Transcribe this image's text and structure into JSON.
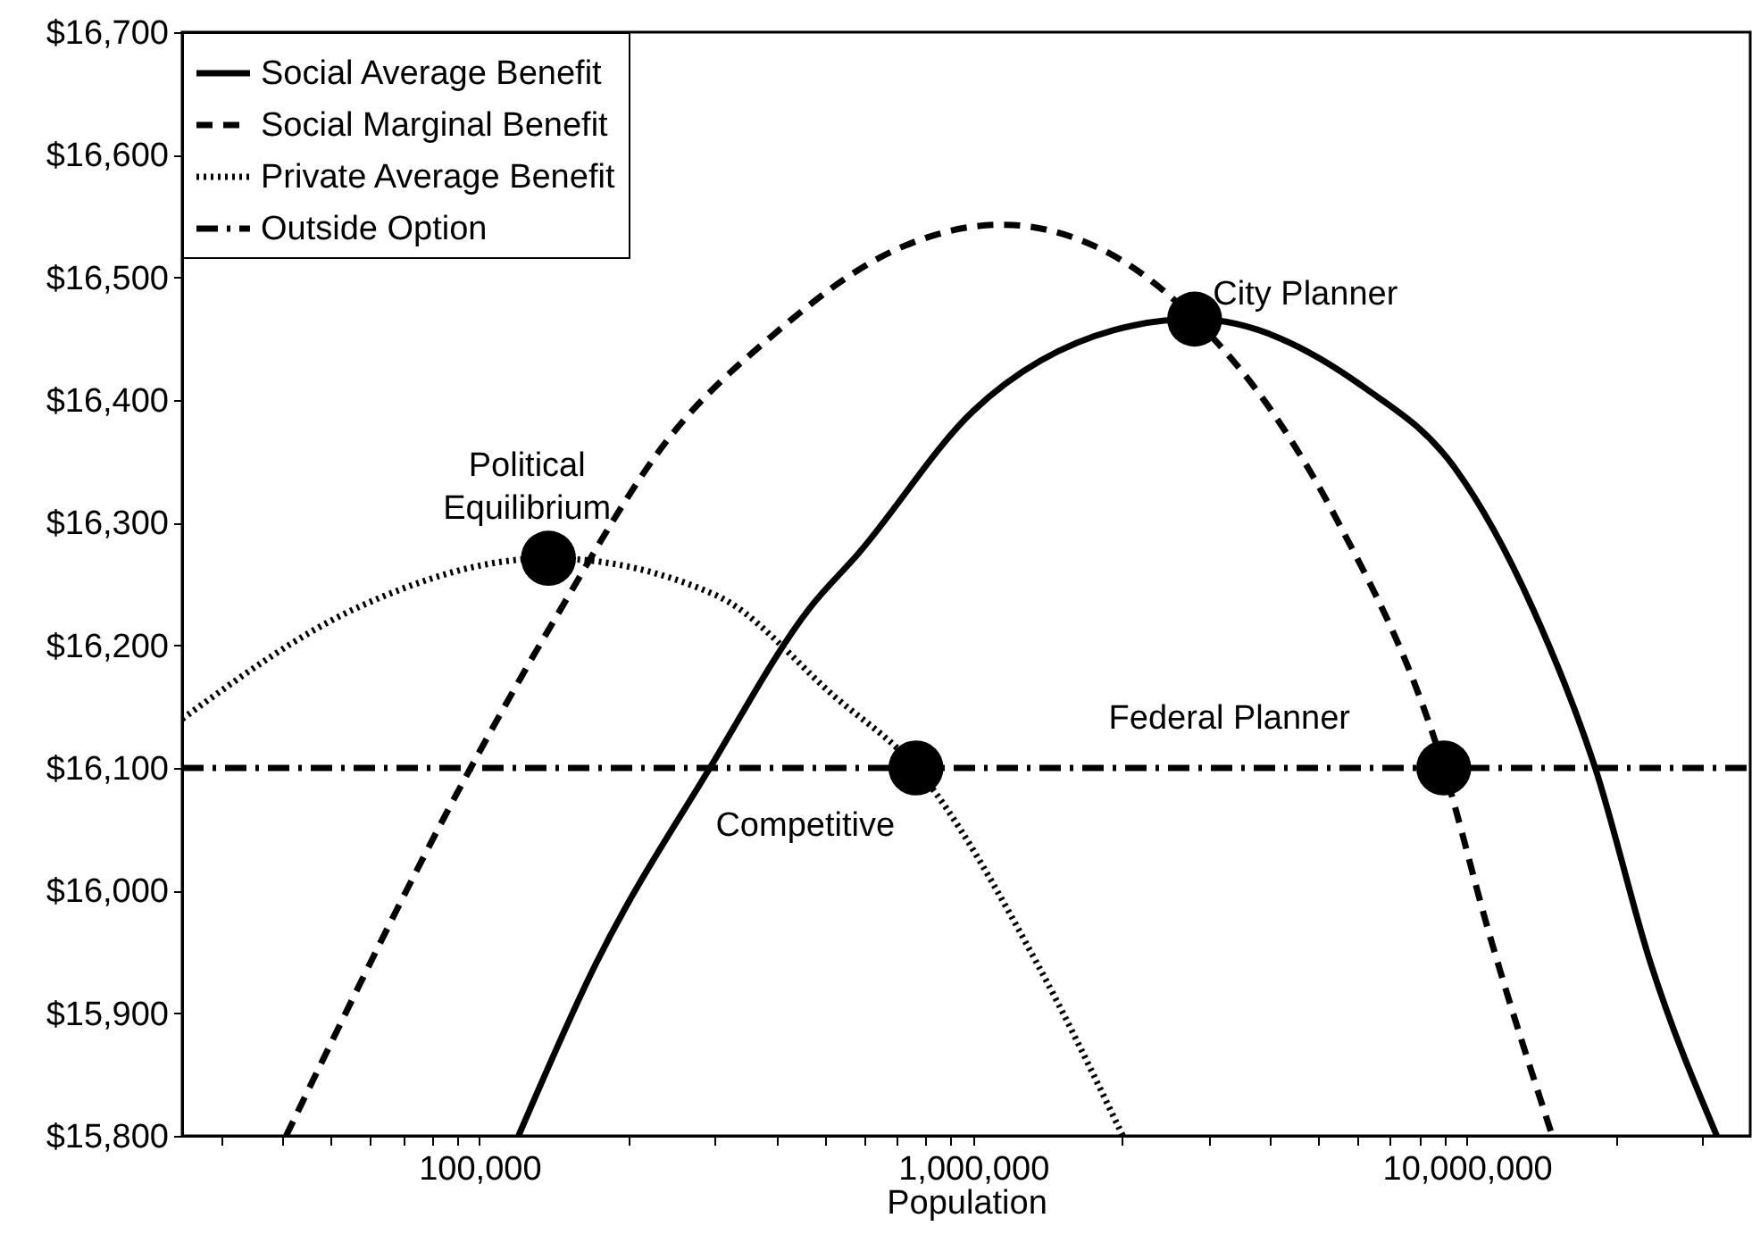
{
  "chart_data": {
    "type": "line",
    "xlabel": "Population",
    "log": "x",
    "grid": false,
    "legend": "top left",
    "xlim": [
      25000,
      37500000
    ],
    "xticks": [
      {
        "value": 30000,
        "label": null
      },
      {
        "value": 40000,
        "label": null
      },
      {
        "value": 50000,
        "label": null
      },
      {
        "value": 60000,
        "label": null
      },
      {
        "value": 70000,
        "label": null
      },
      {
        "value": 80000,
        "label": null
      },
      {
        "value": 90000,
        "label": null
      },
      {
        "value": 100000,
        "label": "100,000"
      },
      {
        "value": 200000,
        "label": null
      },
      {
        "value": 300000,
        "label": null
      },
      {
        "value": 400000,
        "label": null
      },
      {
        "value": 500000,
        "label": null
      },
      {
        "value": 600000,
        "label": null
      },
      {
        "value": 700000,
        "label": null
      },
      {
        "value": 800000,
        "label": null
      },
      {
        "value": 900000,
        "label": null
      },
      {
        "value": 1000000,
        "label": "1,000,000"
      },
      {
        "value": 2000000,
        "label": null
      },
      {
        "value": 3000000,
        "label": null
      },
      {
        "value": 4000000,
        "label": null
      },
      {
        "value": 5000000,
        "label": null
      },
      {
        "value": 6000000,
        "label": null
      },
      {
        "value": 7000000,
        "label": null
      },
      {
        "value": 8000000,
        "label": null
      },
      {
        "value": 9000000,
        "label": null
      },
      {
        "value": 10000000,
        "label": "10,000,000"
      },
      {
        "value": 20000000,
        "label": null
      },
      {
        "value": 30000000,
        "label": null
      }
    ],
    "ylim": [
      15800,
      16700
    ],
    "yticks": [
      {
        "value": 15800,
        "label": "$15,800"
      },
      {
        "value": 15900,
        "label": "$15,900"
      },
      {
        "value": 16000,
        "label": "$16,000"
      },
      {
        "value": 16100,
        "label": "$16,100"
      },
      {
        "value": 16200,
        "label": "$16,200"
      },
      {
        "value": 16300,
        "label": "$16,300"
      },
      {
        "value": 16400,
        "label": "$16,400"
      },
      {
        "value": 16500,
        "label": "$16,500"
      },
      {
        "value": 16600,
        "label": "$16,600"
      },
      {
        "value": 16700,
        "label": "$16,700"
      }
    ],
    "series": [
      {
        "name": "Social Average Benefit",
        "color": "#000000",
        "line_style": "solid",
        "x": [
          120000,
          172000,
          293000,
          468000,
          586000,
          1000000,
          1930000,
          2810000,
          6210000,
          9440000,
          13600000,
          18200000,
          23600000,
          32100000
        ],
        "values": [
          15800,
          15940,
          16100,
          16231,
          16275,
          16391,
          16457,
          16466,
          16410,
          16345,
          16230,
          16100,
          15940,
          15800
        ]
      },
      {
        "name": "Social Marginal Benefit",
        "color": "#000000",
        "line_style": "dashed",
        "x": [
          40600,
          96000,
          142000,
          240000,
          396000,
          692000,
          1140000,
          1880000,
          2810000,
          4090000,
          5430000,
          8980000,
          11100000,
          14900000
        ],
        "values": [
          15800,
          16100,
          16221,
          16367,
          16454,
          16522,
          16543,
          16520,
          16466,
          16387,
          16304,
          16100,
          15965,
          15800
        ]
      },
      {
        "name": "Private Average Benefit",
        "color": "#000000",
        "line_style": "dotted",
        "x": [
          25000,
          56800,
          138000,
          301000,
          525000,
          766000,
          1350000,
          2010000
        ],
        "values": [
          16140,
          16231,
          16271,
          16241,
          16158,
          16100,
          15940,
          15800
        ]
      },
      {
        "name": "Outside Option",
        "color": "#000000",
        "line_style": "dashdot",
        "x": [
          25000,
          37500000
        ],
        "values": [
          16100,
          16100
        ]
      },
      {
        "type": "scatter",
        "color": "#000000",
        "marker": "circle",
        "x": [
          138000,
          2810000,
          766000,
          8980000
        ],
        "values": [
          16271,
          16466,
          16100,
          16100
        ]
      }
    ],
    "annotations": [
      {
        "text": "Political\nEquilibrium",
        "x": 138000,
        "y": 16271
      },
      {
        "text": "City Planner",
        "x": 2810000,
        "y": 16466
      },
      {
        "text": "Competitive",
        "x": 766000,
        "y": 16100
      },
      {
        "text": "Federal Planner",
        "x": 8980000,
        "y": 16100
      }
    ]
  }
}
